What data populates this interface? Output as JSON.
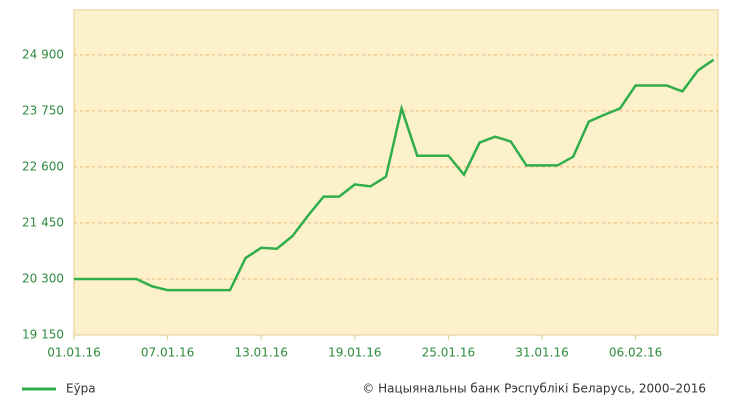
{
  "chart_data": {
    "type": "line",
    "categories": [
      "01.01.16",
      "02.01.16",
      "03.01.16",
      "04.01.16",
      "05.01.16",
      "06.01.16",
      "07.01.16",
      "08.01.16",
      "09.01.16",
      "10.01.16",
      "11.01.16",
      "12.01.16",
      "13.01.16",
      "14.01.16",
      "15.01.16",
      "16.01.16",
      "17.01.16",
      "18.01.16",
      "19.01.16",
      "20.01.16",
      "21.01.16",
      "22.01.16",
      "23.01.16",
      "24.01.16",
      "25.01.16",
      "26.01.16",
      "27.01.16",
      "28.01.16",
      "29.01.16",
      "30.01.16",
      "31.01.16",
      "01.02.16",
      "02.02.16",
      "03.02.16",
      "04.02.16",
      "05.02.16",
      "06.02.16",
      "07.02.16",
      "08.02.16",
      "09.02.16",
      "10.02.16",
      "11.02.16"
    ],
    "xticks": [
      "01.01.16",
      "07.01.16",
      "13.01.16",
      "19.01.16",
      "25.01.16",
      "31.01.16",
      "06.02.16"
    ],
    "series": [
      {
        "name": "Еўра",
        "color": "#2fae4b",
        "values": [
          20300,
          20300,
          20300,
          20300,
          20300,
          20150,
          20070,
          20070,
          20070,
          20070,
          20070,
          20730,
          20940,
          20920,
          21180,
          21600,
          21990,
          21990,
          22240,
          22200,
          22400,
          23800,
          22830,
          22830,
          22830,
          22440,
          23100,
          23220,
          23120,
          22630,
          22630,
          22630,
          22810,
          23530,
          23670,
          23800,
          24270,
          24270,
          24270,
          24150,
          24580,
          24800
        ]
      }
    ],
    "ylim": [
      19150,
      25820
    ],
    "yticks": [
      {
        "value": 19150,
        "label": "19 150"
      },
      {
        "value": 20300,
        "label": "20 300"
      },
      {
        "value": 21450,
        "label": "21 450"
      },
      {
        "value": 22600,
        "label": "22 600"
      },
      {
        "value": 23750,
        "label": "23 750"
      },
      {
        "value": 24900,
        "label": "24 900"
      }
    ],
    "grid": true,
    "source": "© Нацыянальны банк Рэспублікі Беларусь, 2000–2016"
  }
}
